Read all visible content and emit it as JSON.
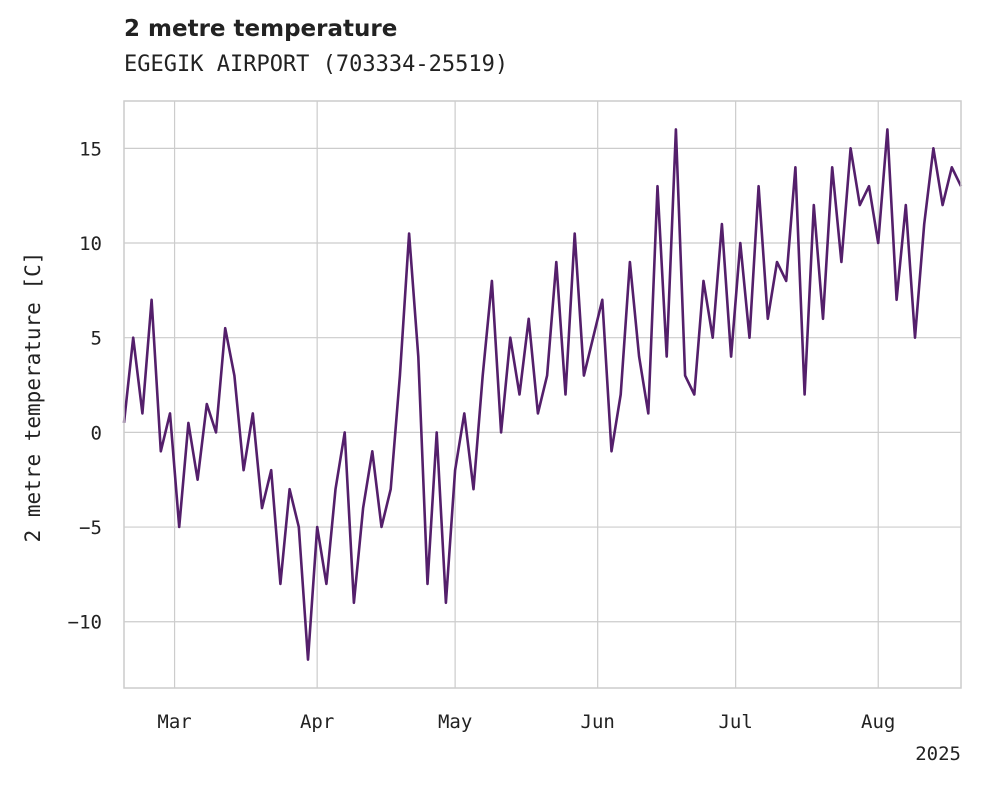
{
  "chart_data": {
    "type": "line",
    "title": "2 metre temperature",
    "subtitle": "EGEGIK AIRPORT (703334-25519)",
    "xlabel": "",
    "ylabel": "2 metre temperature [C]",
    "x_start": "2025-02-18",
    "x_end": "2025-08-19",
    "x_ticks": [
      {
        "label": "Mar",
        "date": "2025-03-01"
      },
      {
        "label": "Apr",
        "date": "2025-04-01"
      },
      {
        "label": "May",
        "date": "2025-05-01"
      },
      {
        "label": "Jun",
        "date": "2025-06-01"
      },
      {
        "label": "Jul",
        "date": "2025-07-01"
      },
      {
        "label": "Aug",
        "date": "2025-08-01"
      }
    ],
    "x_year_label": "2025",
    "ylim": [
      -13.5,
      17.5
    ],
    "y_ticks": [
      -10,
      -5,
      0,
      5,
      10,
      15
    ],
    "grid": true,
    "series": [
      {
        "color": "#541f6b",
        "x": [
          "2025-02-18",
          "2025-02-20",
          "2025-02-22",
          "2025-02-24",
          "2025-02-26",
          "2025-02-28",
          "2025-03-02",
          "2025-03-04",
          "2025-03-06",
          "2025-03-08",
          "2025-03-10",
          "2025-03-12",
          "2025-03-14",
          "2025-03-16",
          "2025-03-18",
          "2025-03-20",
          "2025-03-22",
          "2025-03-24",
          "2025-03-26",
          "2025-03-28",
          "2025-03-30",
          "2025-04-01",
          "2025-04-03",
          "2025-04-05",
          "2025-04-07",
          "2025-04-09",
          "2025-04-11",
          "2025-04-13",
          "2025-04-15",
          "2025-04-17",
          "2025-04-19",
          "2025-04-21",
          "2025-04-23",
          "2025-04-25",
          "2025-04-27",
          "2025-04-29",
          "2025-05-01",
          "2025-05-03",
          "2025-05-05",
          "2025-05-07",
          "2025-05-09",
          "2025-05-11",
          "2025-05-13",
          "2025-05-15",
          "2025-05-17",
          "2025-05-19",
          "2025-05-21",
          "2025-05-23",
          "2025-05-25",
          "2025-05-27",
          "2025-05-29",
          "2025-05-31",
          "2025-06-02",
          "2025-06-04",
          "2025-06-06",
          "2025-06-08",
          "2025-06-10",
          "2025-06-12",
          "2025-06-14",
          "2025-06-16",
          "2025-06-18",
          "2025-06-20",
          "2025-06-22",
          "2025-06-24",
          "2025-06-26",
          "2025-06-28",
          "2025-06-30",
          "2025-07-02",
          "2025-07-04",
          "2025-07-06",
          "2025-07-08",
          "2025-07-10",
          "2025-07-12",
          "2025-07-14",
          "2025-07-16",
          "2025-07-18",
          "2025-07-20",
          "2025-07-22",
          "2025-07-24",
          "2025-07-26",
          "2025-07-28",
          "2025-07-30",
          "2025-08-01",
          "2025-08-03",
          "2025-08-05",
          "2025-08-07",
          "2025-08-09",
          "2025-08-11",
          "2025-08-13",
          "2025-08-15",
          "2025-08-17",
          "2025-08-19"
        ],
        "y": [
          0.5,
          5.0,
          1.0,
          7.0,
          -1.0,
          1.0,
          -5.0,
          0.5,
          -2.5,
          1.5,
          0.0,
          5.5,
          3.0,
          -2.0,
          1.0,
          -4.0,
          -2.0,
          -8.0,
          -3.0,
          -5.0,
          -12.0,
          -5.0,
          -8.0,
          -3.0,
          0.0,
          -9.0,
          -4.0,
          -1.0,
          -5.0,
          -3.0,
          3.0,
          10.5,
          4.0,
          -8.0,
          0.0,
          -9.0,
          -2.0,
          1.0,
          -3.0,
          3.0,
          8.0,
          0.0,
          5.0,
          2.0,
          6.0,
          1.0,
          3.0,
          9.0,
          2.0,
          10.5,
          3.0,
          5.0,
          7.0,
          -1.0,
          2.0,
          9.0,
          4.0,
          1.0,
          13.0,
          4.0,
          16.0,
          3.0,
          2.0,
          8.0,
          5.0,
          11.0,
          4.0,
          10.0,
          5.0,
          13.0,
          6.0,
          9.0,
          8.0,
          14.0,
          2.0,
          12.0,
          6.0,
          14.0,
          9.0,
          15.0,
          12.0,
          13.0,
          10.0,
          16.0,
          7.0,
          12.0,
          5.0,
          11.0,
          15.0,
          12.0,
          14.0,
          13.0
        ]
      }
    ]
  }
}
